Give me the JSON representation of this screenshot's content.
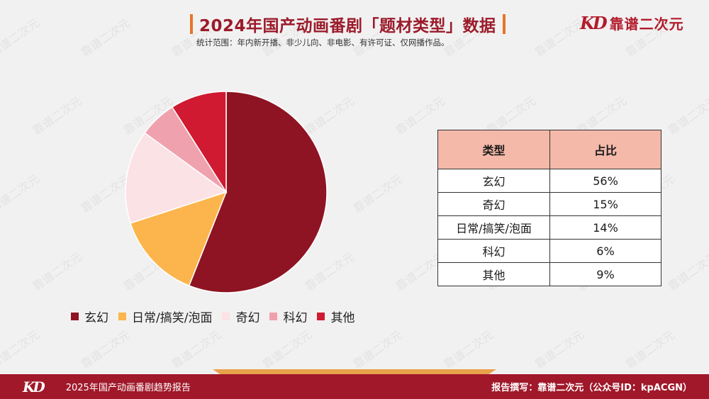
{
  "header": {
    "title": "2024年国产动画番剧「题材类型」数据",
    "subtitle": "统计范围：年内新开播、非少儿向、非电影、有许可证、仅网播作品。",
    "brand_logo": "KD",
    "brand_name": "靠谱二次元"
  },
  "watermark_text": "靠谱二次元",
  "chart_data": {
    "type": "pie",
    "slices": [
      {
        "label": "玄幻",
        "value": 56,
        "color": "#8e1423"
      },
      {
        "label": "日常/搞笑/泡面",
        "value": 14,
        "color": "#fcb54c"
      },
      {
        "label": "奇幻",
        "value": 15,
        "color": "#fbe2e5"
      },
      {
        "label": "科幻",
        "value": 6,
        "color": "#f0a1ae"
      },
      {
        "label": "其他",
        "value": 9,
        "color": "#d01a31"
      }
    ],
    "legend": [
      "玄幻",
      "日常/搞笑/泡面",
      "奇幻",
      "科幻",
      "其他"
    ],
    "legend_position": "bottom"
  },
  "table": {
    "headers": [
      "类型",
      "占比"
    ],
    "rows": [
      [
        "玄幻",
        "56%"
      ],
      [
        "奇幻",
        "15%"
      ],
      [
        "日常/搞笑/泡面",
        "14%"
      ],
      [
        "科幻",
        "6%"
      ],
      [
        "其他",
        "9%"
      ]
    ]
  },
  "footer": {
    "logo": "KD",
    "left_text": "2025年国产动画番剧趋势报告",
    "right_text": "报告撰写：靠谱二次元（公众号ID：kpACGN）"
  }
}
